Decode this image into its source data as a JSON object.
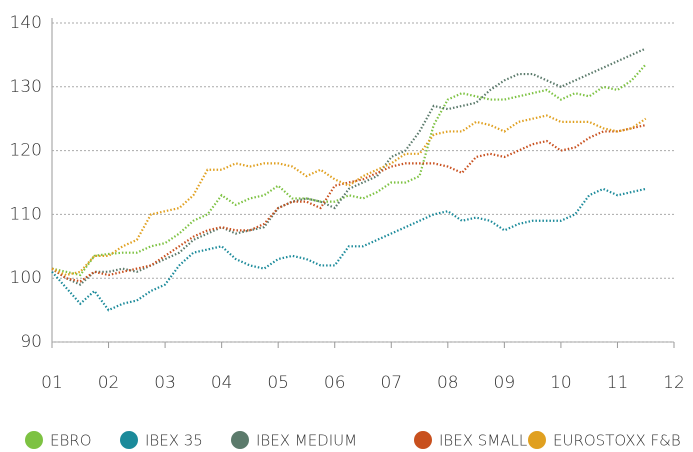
{
  "chart_data": {
    "type": "line",
    "x": [
      1,
      1.25,
      1.5,
      1.75,
      2,
      2.25,
      2.5,
      2.75,
      3,
      3.25,
      3.5,
      3.75,
      4,
      4.25,
      4.5,
      4.75,
      5,
      5.25,
      5.5,
      5.75,
      6,
      6.25,
      6.5,
      6.75,
      7,
      7.25,
      7.5,
      7.75,
      8,
      8.25,
      8.5,
      8.75,
      9,
      9.25,
      9.5,
      9.75,
      10,
      10.25,
      10.5,
      10.75,
      11,
      11.25,
      11.5
    ],
    "series": [
      {
        "name": "EBRO",
        "color": "#7dc242",
        "values": [
          101.5,
          101,
          100.5,
          103.5,
          103.8,
          104,
          104,
          105,
          105.5,
          107,
          109,
          110,
          113,
          111.5,
          112.5,
          113,
          114.5,
          112.5,
          112.5,
          112,
          112,
          113,
          112.5,
          113.5,
          115,
          115,
          116,
          124,
          128,
          129,
          128.5,
          128,
          128,
          128.5,
          129,
          129.5,
          128,
          129,
          128.5,
          130,
          129.5,
          131,
          133.5
        ]
      },
      {
        "name": "IBEX 35",
        "color": "#1b8a9a",
        "values": [
          101,
          98.5,
          96,
          98,
          95,
          96,
          96.5,
          98,
          99,
          102,
          104,
          104.5,
          105,
          103,
          102,
          101.5,
          103,
          103.5,
          103,
          102,
          102,
          105,
          105,
          106,
          107,
          108,
          109,
          110,
          110.5,
          109,
          109.5,
          109,
          107.5,
          108.5,
          109,
          109,
          109,
          110,
          113,
          114,
          113,
          113.5,
          114
        ]
      },
      {
        "name": "IBEX MEDIUM",
        "color": "#5b7a6b",
        "values": [
          101.5,
          100,
          99,
          101,
          101,
          101.5,
          101,
          102,
          103,
          104,
          106,
          107,
          108,
          107,
          107.5,
          108,
          111,
          112,
          112.5,
          112,
          111,
          114,
          115,
          116,
          119,
          120,
          123,
          127,
          126.5,
          127,
          127.5,
          129.5,
          131,
          132,
          132,
          131,
          130,
          131,
          132,
          133,
          134,
          135,
          136
        ]
      },
      {
        "name": "IBEX SMALL",
        "color": "#c8501e",
        "values": [
          101.5,
          100,
          99.5,
          101,
          100.5,
          101,
          101.5,
          102,
          103.5,
          105,
          106.5,
          107.5,
          108,
          107.5,
          107.5,
          108.5,
          111,
          112,
          112,
          111,
          114.5,
          115,
          115.5,
          116.5,
          117.5,
          118,
          118,
          118,
          117.5,
          116.5,
          119,
          119.5,
          119,
          120,
          121,
          121.5,
          120,
          120.5,
          122,
          123,
          123,
          123.5,
          124
        ]
      },
      {
        "name": "EUROSTOXX F&B",
        "color": "#e0a020",
        "values": [
          101.5,
          100.5,
          101,
          103.5,
          103.5,
          105,
          106,
          110,
          110.5,
          111,
          113,
          117,
          117,
          118,
          117.5,
          118,
          118,
          117.5,
          116,
          117,
          115.5,
          114.5,
          116,
          117,
          118,
          119.5,
          119.5,
          122.5,
          123,
          123,
          124.5,
          124,
          123,
          124.5,
          125,
          125.5,
          124.5,
          124.5,
          124.5,
          123.5,
          123,
          123.5,
          125
        ]
      }
    ],
    "xlim": [
      1,
      12
    ],
    "xticks": [
      {
        "value": 1,
        "label": "01"
      },
      {
        "value": 2,
        "label": "02"
      },
      {
        "value": 3,
        "label": "03"
      },
      {
        "value": 4,
        "label": "04"
      },
      {
        "value": 5,
        "label": "05"
      },
      {
        "value": 6,
        "label": "06"
      },
      {
        "value": 7,
        "label": "07"
      },
      {
        "value": 8,
        "label": "08"
      },
      {
        "value": 9,
        "label": "09"
      },
      {
        "value": 10,
        "label": "10"
      },
      {
        "value": 11,
        "label": "11"
      },
      {
        "value": 12,
        "label": "12"
      }
    ],
    "ylim": [
      90,
      140
    ],
    "yticks": [
      90,
      100,
      110,
      120,
      130,
      140
    ],
    "grid": true
  }
}
